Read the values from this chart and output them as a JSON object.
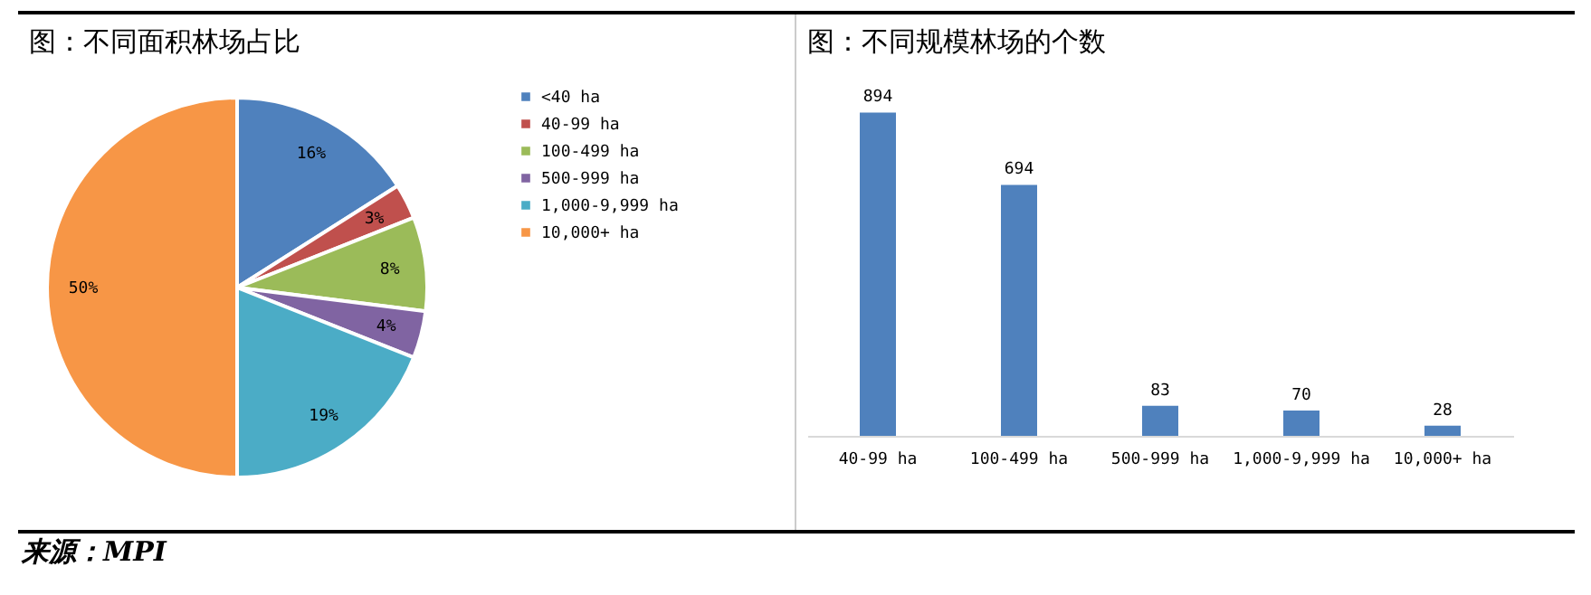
{
  "chart_data": [
    {
      "type": "pie",
      "title": "图：不同面积林场占比",
      "categories": [
        "<40 ha",
        "40-99 ha",
        "100-499 ha",
        "500-999 ha",
        "1,000-9,999 ha",
        "10,000+ ha"
      ],
      "values": [
        16,
        3,
        8,
        4,
        19,
        50
      ],
      "colors": [
        "#4f81bd",
        "#c0504d",
        "#9bbb59",
        "#8064a2",
        "#4bacc6",
        "#f79646"
      ],
      "value_labels": [
        "16%",
        "3%",
        "8%",
        "4%",
        "19%",
        "50%"
      ],
      "legend": "right",
      "annotations": [
        "来源：MPI"
      ]
    },
    {
      "type": "bar",
      "title": "图：不同规模林场的个数",
      "categories": [
        "40-99 ha",
        "100-499 ha",
        "500-999 ha",
        "1,000-9,999 ha",
        "10,000+ ha"
      ],
      "values": [
        894,
        694,
        83,
        70,
        28
      ],
      "color": "#4f81bd",
      "data_labels": true,
      "tick_labels": "x"
    }
  ]
}
